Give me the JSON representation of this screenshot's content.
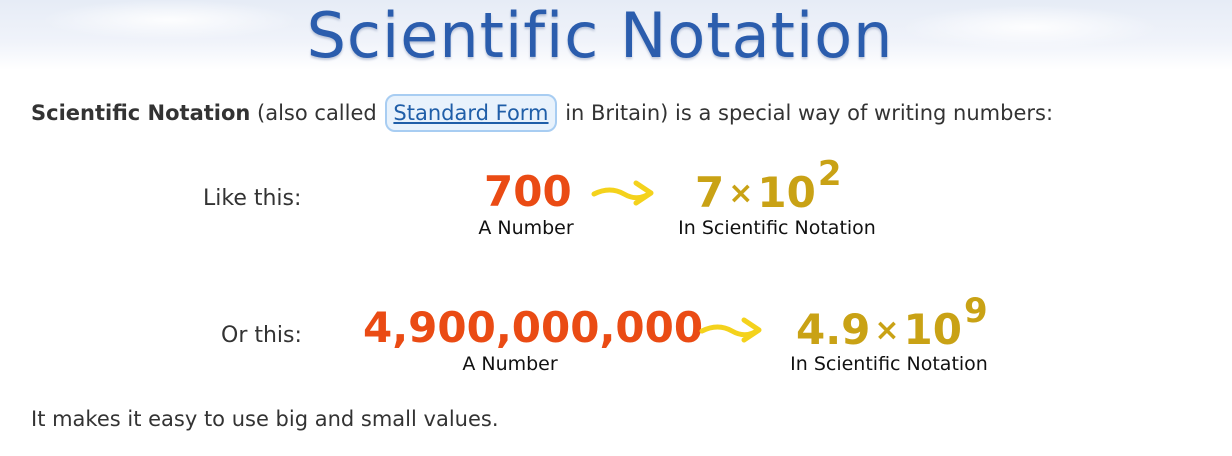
{
  "header": {
    "title": "Scientific Notation"
  },
  "intro": {
    "bold_term": "Scientific Notation",
    "text_before_link": " (also called ",
    "link_label": "Standard Form",
    "text_after_link": " in Britain) is a special way of writing numbers:"
  },
  "examples": [
    {
      "label": "Like this:",
      "number": "700",
      "number_caption": "A Number",
      "coefficient": "7",
      "times": "×",
      "base": "10",
      "exponent": "2",
      "sci_caption": "In Scientific Notation"
    },
    {
      "label": "Or this:",
      "number": "4,900,000,000",
      "number_caption": "A Number",
      "coefficient": "4.9",
      "times": "×",
      "base": "10",
      "exponent": "9",
      "sci_caption": "In Scientific Notation"
    }
  ],
  "outro": {
    "text": "It makes it easy to use big and small values."
  },
  "colors": {
    "title": "#2b5dad",
    "number": "#ea4b14",
    "scientific": "#c9a215",
    "arrow": "#f4d21c",
    "link_bg": "#e8f2fc",
    "link_border": "#a8cdf2"
  },
  "icons": {
    "arrow": "right-arrow-icon"
  }
}
